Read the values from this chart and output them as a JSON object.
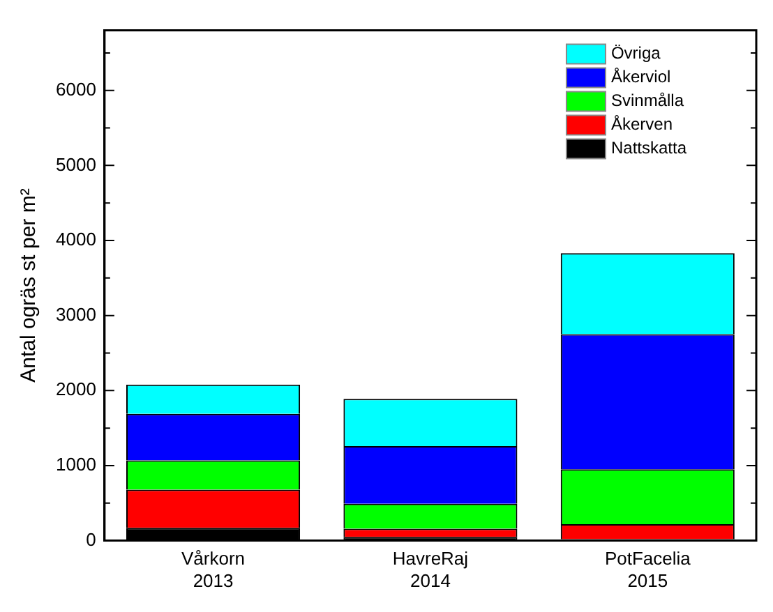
{
  "chart_data": {
    "type": "bar",
    "stacked": true,
    "ylabel": "Antal ogräs st per m²",
    "categories": [
      "Vårkorn\n2013",
      "HavreRaj\n2014",
      "PotFacelia\n2015"
    ],
    "series": [
      {
        "name": "Nattskatta",
        "color": "#000000",
        "values": [
          170,
          50,
          20
        ]
      },
      {
        "name": "Åkerven",
        "color": "#ff0000",
        "values": [
          510,
          110,
          200
        ]
      },
      {
        "name": "Svinmålla",
        "color": "#00ff00",
        "values": [
          390,
          330,
          730
        ]
      },
      {
        "name": "Åkerviol",
        "color": "#0000ff",
        "values": [
          620,
          770,
          1800
        ]
      },
      {
        "name": "Övriga",
        "color": "#00ffff",
        "values": [
          390,
          630,
          1080
        ]
      }
    ],
    "ylim": [
      0,
      6800
    ],
    "yticks": [
      0,
      {
        "value": 500,
        "label": null
      },
      1000,
      {
        "value": 1500,
        "label": null
      },
      2000,
      {
        "value": 2500,
        "label": null
      },
      3000,
      {
        "value": 3500,
        "label": null
      },
      4000,
      {
        "value": 4500,
        "label": null
      },
      5000,
      {
        "value": 5500,
        "label": null
      },
      6000,
      {
        "value": 6500,
        "label": null
      }
    ],
    "grid": false,
    "legend": "top right"
  }
}
